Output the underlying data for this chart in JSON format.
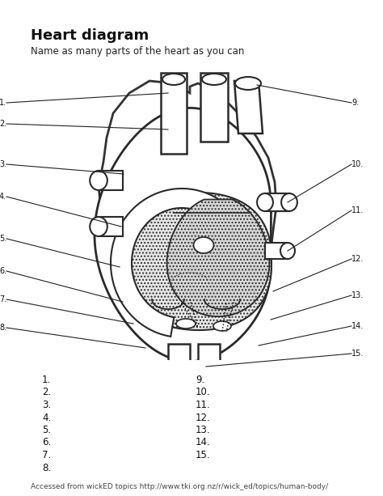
{
  "title": "Heart diagram",
  "subtitle": "Name as many parts of the heart as you can",
  "footer": "Accessed from wickED topics http://www.tki.org.nz/r/wick_ed/topics/human-body/",
  "bg_color": "#ffffff",
  "left_labels": [
    "1.",
    "2.",
    "3.",
    "4.",
    "5.",
    "6.",
    "7.",
    "8."
  ],
  "right_labels": [
    "9.",
    "10.",
    "11.",
    "12.",
    "13.",
    "14.",
    "15."
  ],
  "title_fontsize": 13,
  "subtitle_fontsize": 8.5,
  "label_fontsize": 8.5,
  "footer_fontsize": 6.5,
  "diagram_label_fontsize": 7.0
}
